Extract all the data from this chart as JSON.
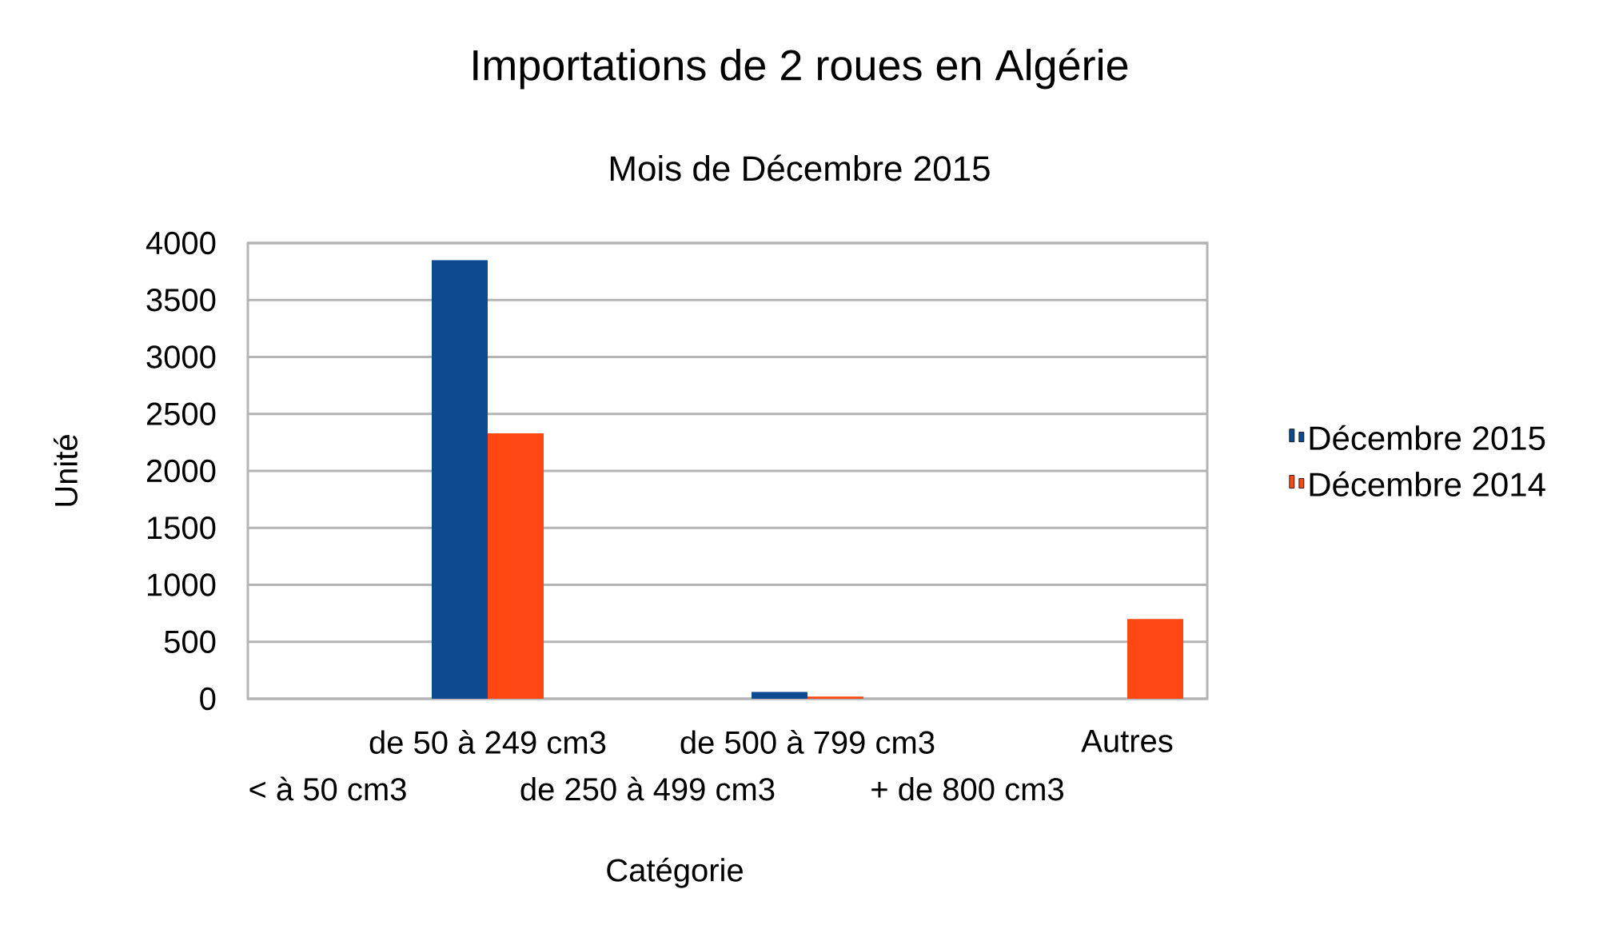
{
  "chart_data": {
    "type": "bar",
    "title": "Importations de 2 roues en Algérie",
    "subtitle": "Mois de Décembre 2015",
    "xlabel": "Catégorie",
    "ylabel": "Unité",
    "categories": [
      "< à 50 cm3",
      "de 50 à 249 cm3",
      "de 250 à 499 cm3",
      "de 500 à 799 cm3",
      "+ de 800 cm3",
      "Autres"
    ],
    "series": [
      {
        "name": "Décembre 2015",
        "color": "#0d4a8f",
        "values": [
          0,
          3850,
          0,
          60,
          0,
          0
        ]
      },
      {
        "name": "Décembre 2014",
        "color": "#ff4713",
        "values": [
          0,
          2330,
          0,
          20,
          0,
          700
        ]
      }
    ],
    "ylim": [
      0,
      4000
    ],
    "yticks": [
      0,
      500,
      1000,
      1500,
      2000,
      2500,
      3000,
      3500,
      4000
    ],
    "grid": "y",
    "legend": "right"
  }
}
